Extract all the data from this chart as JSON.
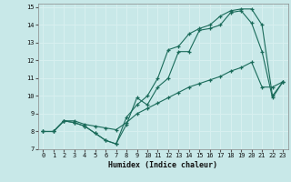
{
  "xlabel": "Humidex (Indice chaleur)",
  "xlim": [
    -0.5,
    23.5
  ],
  "ylim": [
    7,
    15.2
  ],
  "yticks": [
    7,
    8,
    9,
    10,
    11,
    12,
    13,
    14,
    15
  ],
  "xticks": [
    0,
    1,
    2,
    3,
    4,
    5,
    6,
    7,
    8,
    9,
    10,
    11,
    12,
    13,
    14,
    15,
    16,
    17,
    18,
    19,
    20,
    21,
    22,
    23
  ],
  "bg_color": "#c8e8e8",
  "line_color": "#1a6b5a",
  "grid_color": "#e8f8f8",
  "line1_x": [
    0,
    1,
    2,
    3,
    4,
    5,
    6,
    7,
    8,
    9,
    10,
    11,
    12,
    13,
    14,
    15,
    16,
    17,
    18,
    19,
    20,
    21,
    22,
    23
  ],
  "line1_y": [
    8.0,
    8.0,
    8.6,
    8.5,
    8.3,
    7.9,
    7.5,
    7.3,
    8.4,
    9.9,
    9.5,
    10.5,
    11.0,
    12.5,
    12.5,
    13.7,
    13.8,
    14.0,
    14.7,
    14.8,
    14.1,
    12.5,
    9.9,
    10.8
  ],
  "line2_x": [
    0,
    1,
    2,
    3,
    4,
    5,
    6,
    7,
    8,
    9,
    10,
    11,
    12,
    13,
    14,
    15,
    16,
    17,
    18,
    19,
    20,
    21,
    22,
    23
  ],
  "line2_y": [
    8.0,
    8.0,
    8.6,
    8.5,
    8.3,
    7.9,
    7.5,
    7.3,
    8.8,
    9.5,
    10.0,
    11.0,
    12.6,
    12.8,
    13.5,
    13.8,
    14.0,
    14.5,
    14.8,
    14.9,
    14.9,
    14.0,
    10.0,
    10.8
  ],
  "line3_x": [
    0,
    1,
    2,
    3,
    4,
    5,
    6,
    7,
    8,
    9,
    10,
    11,
    12,
    13,
    14,
    15,
    16,
    17,
    18,
    19,
    20,
    21,
    22,
    23
  ],
  "line3_y": [
    8.0,
    8.0,
    8.6,
    8.6,
    8.4,
    8.3,
    8.2,
    8.1,
    8.5,
    9.0,
    9.3,
    9.6,
    9.9,
    10.2,
    10.5,
    10.7,
    10.9,
    11.1,
    11.4,
    11.6,
    11.9,
    10.5,
    10.5,
    10.8
  ]
}
